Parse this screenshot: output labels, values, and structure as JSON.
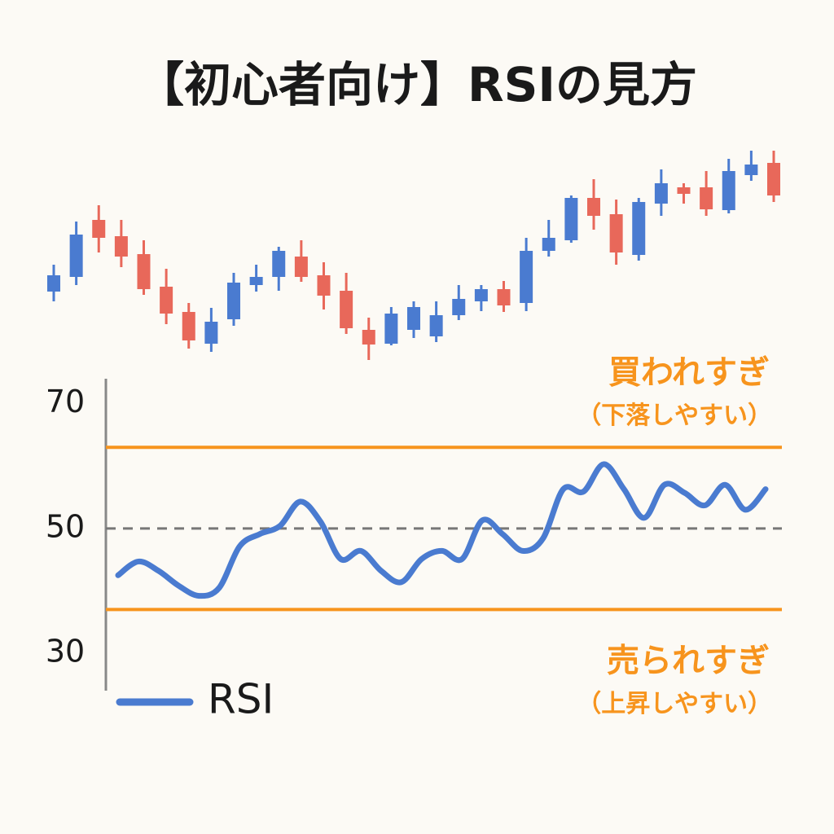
{
  "chart_data": [
    {
      "type": "candlestick",
      "title": "【初心者向け】RSIの見方",
      "up_color": "#4a7bd0",
      "down_color": "#e8685a",
      "ylim": [
        0,
        300
      ],
      "open": [
        102,
        120,
        190,
        170,
        148,
        108,
        77,
        38,
        68,
        110,
        120,
        145,
        122,
        103,
        55,
        38,
        55,
        47,
        73,
        90,
        105,
        88,
        152,
        165,
        217,
        197,
        147,
        210,
        230,
        230,
        202,
        245,
        260
      ],
      "high": [
        135,
        188,
        208,
        190,
        165,
        130,
        88,
        82,
        125,
        135,
        157,
        165,
        138,
        125,
        70,
        83,
        90,
        90,
        110,
        110,
        115,
        168,
        190,
        220,
        240,
        215,
        217,
        252,
        235,
        250,
        265,
        275,
        275
      ],
      "low": [
        90,
        110,
        150,
        132,
        98,
        62,
        32,
        28,
        60,
        102,
        103,
        114,
        80,
        50,
        18,
        36,
        45,
        40,
        67,
        78,
        77,
        78,
        145,
        162,
        178,
        135,
        140,
        195,
        210,
        195,
        198,
        238,
        212
      ],
      "close": [
        122,
        172,
        168,
        145,
        105,
        75,
        42,
        65,
        113,
        120,
        152,
        120,
        97,
        57,
        37,
        75,
        83,
        73,
        93,
        105,
        85,
        152,
        168,
        217,
        195,
        150,
        212,
        235,
        222,
        203,
        250,
        258,
        220
      ]
    },
    {
      "type": "line",
      "ylim": [
        24,
        74
      ],
      "yticks": [
        70,
        50,
        30
      ],
      "series": [
        {
          "name": "RSI",
          "color": "#4a7bd0",
          "values": [
            42.5,
            44.7,
            43.2,
            40.8,
            39.2,
            40.5,
            47.1,
            49.1,
            50.4,
            54.3,
            51.1,
            45.1,
            46.4,
            43.2,
            41.4,
            45.1,
            46.4,
            45.1,
            51.3,
            49.1,
            46.4,
            48.4,
            56.3,
            55.9,
            60.3,
            56.3,
            51.7,
            57.0,
            55.7,
            53.7,
            57.0,
            53.0,
            56.3
          ]
        }
      ],
      "midline": 50,
      "threshold_color": "#f7941d",
      "overbought": {
        "value": 63,
        "label": "買われすぎ",
        "note": "（下落しやすい）"
      },
      "oversold": {
        "value": 37,
        "label": "売られすぎ",
        "note": "（上昇しやすい）"
      }
    }
  ]
}
